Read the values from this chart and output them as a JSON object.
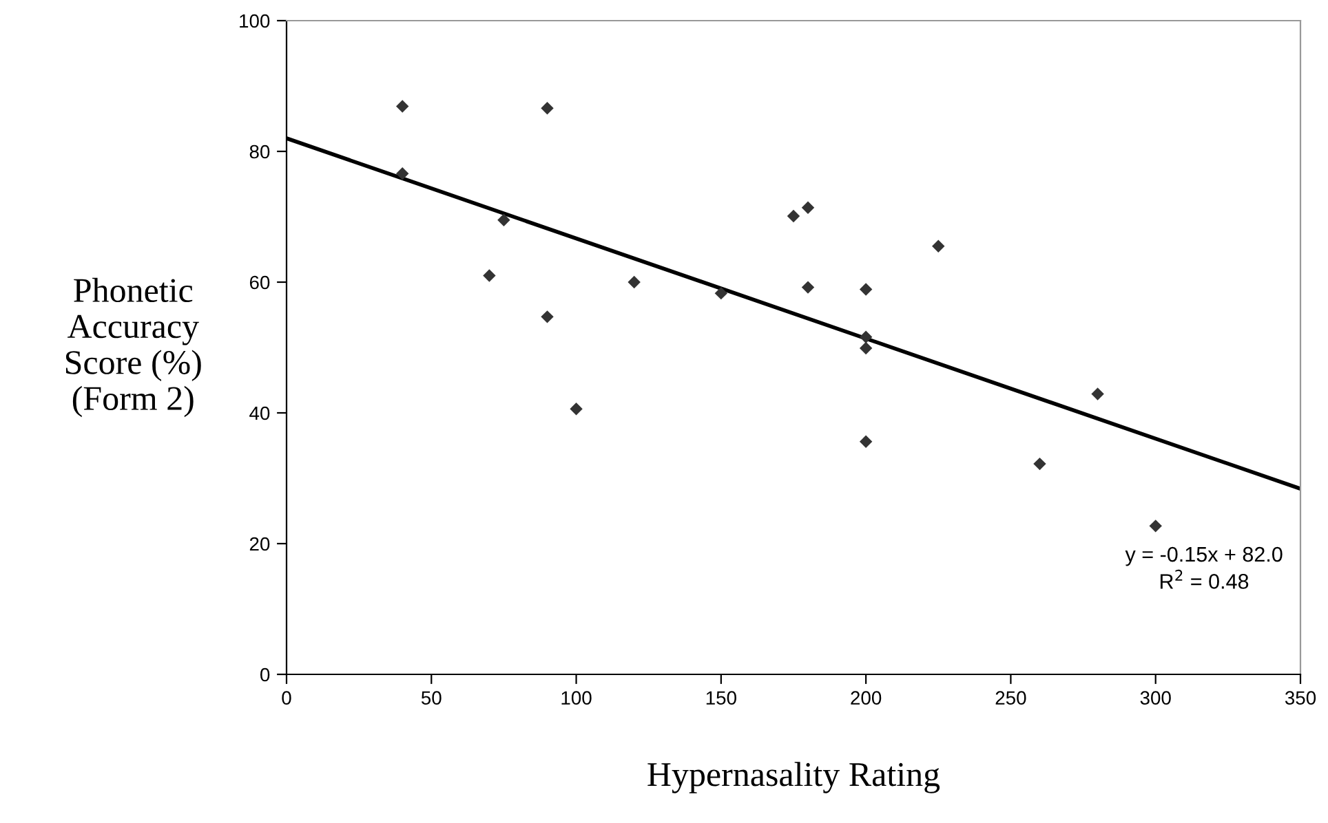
{
  "chart_data": {
    "type": "scatter",
    "xlabel": "Hypernasality Rating",
    "ylabel": "Phonetic\nAccuracy\nScore (%)\n(Form 2)",
    "xlim": [
      0,
      350
    ],
    "ylim": [
      0,
      100
    ],
    "xticks": [
      0,
      50,
      100,
      150,
      200,
      250,
      300,
      350
    ],
    "yticks": [
      0,
      20,
      40,
      60,
      80,
      100
    ],
    "grid": false,
    "series": [
      {
        "marker": "diamond",
        "color": "#333333",
        "x": [
          40,
          40,
          90,
          75,
          70,
          90,
          100,
          120,
          150,
          175,
          180,
          180,
          200,
          200,
          200,
          200,
          225,
          260,
          280,
          300
        ],
        "values": [
          86.9,
          76.6,
          86.6,
          69.5,
          61,
          54.7,
          40.6,
          60,
          58.3,
          70.1,
          71.4,
          59.2,
          58.9,
          51.6,
          49.9,
          35.6,
          65.5,
          32.2,
          42.9,
          22.7
        ]
      },
      {
        "type": "line",
        "color": "#000000",
        "x": [
          0,
          350
        ],
        "values": [
          82,
          28.4
        ],
        "line_style": "solid",
        "marker": "none"
      }
    ],
    "annotations": [
      "y = -0.15x + 82.0\nR$^{2}$ = 0.48"
    ]
  }
}
